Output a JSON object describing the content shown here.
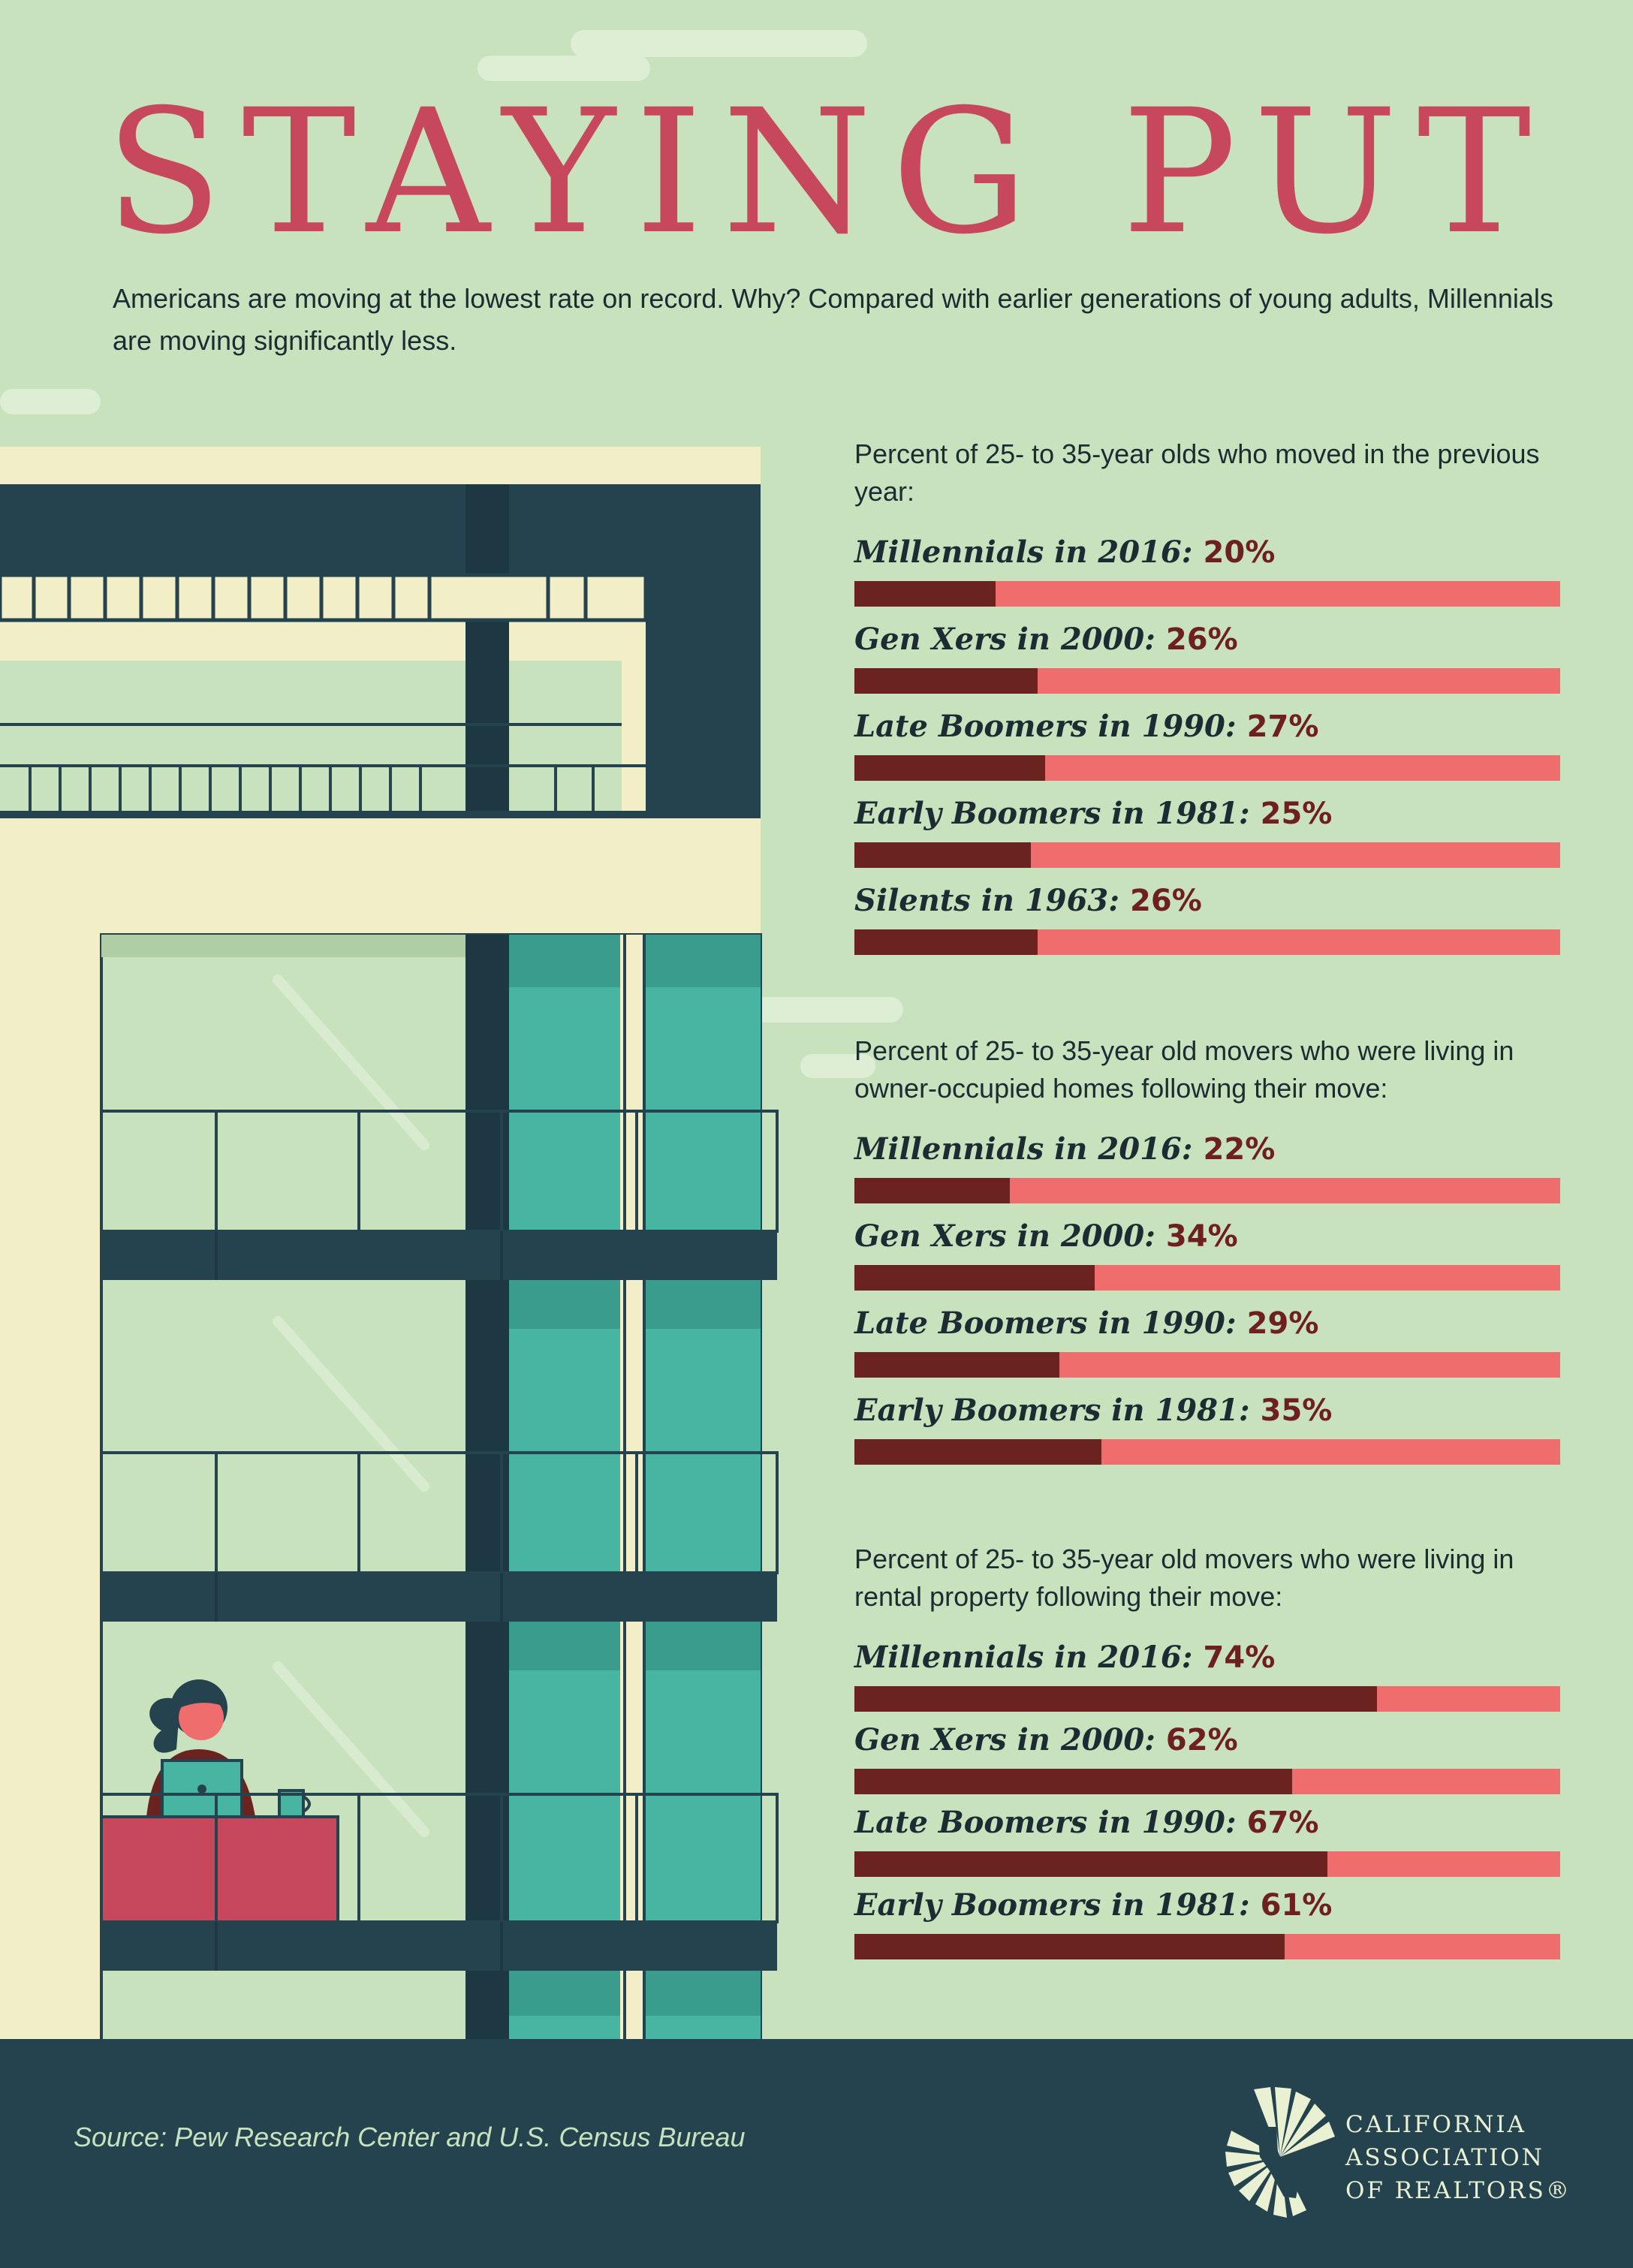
{
  "title": "STAYING PUT",
  "intro": "Americans are moving at the lowest rate on record. Why? Compared with earlier generations of young adults, Millennials are moving significantly less.",
  "colors": {
    "background": "#c7e2bd",
    "title": "#c7485d",
    "bar_fill": "#6b2320",
    "bar_track": "#ef6d6c",
    "value_text": "#6e1f22",
    "footer": "#24434e"
  },
  "chart_data": [
    {
      "type": "bar",
      "title": "Percent of 25- to 35-year olds who moved in the previous year:",
      "categories": [
        "Millennials in 2016:",
        "Gen Xers in 2000:",
        "Late Boomers in 1990:",
        "Early Boomers in 1981:",
        "Silents in 1963:"
      ],
      "values": [
        20,
        26,
        27,
        25,
        26
      ],
      "value_labels": [
        "20%",
        "26%",
        "27%",
        "25%",
        "26%"
      ],
      "ylim": [
        0,
        100
      ]
    },
    {
      "type": "bar",
      "title": "Percent of 25- to 35-year old movers who were living in owner-occupied homes following their move:",
      "categories": [
        "Millennials in 2016:",
        "Gen Xers in 2000:",
        "Late Boomers in 1990:",
        "Early Boomers in 1981:"
      ],
      "values": [
        22,
        34,
        29,
        35
      ],
      "value_labels": [
        "22%",
        "34%",
        "29%",
        "35%"
      ],
      "ylim": [
        0,
        100
      ]
    },
    {
      "type": "bar",
      "title": "Percent of 25- to 35-year old movers who were living in rental property following their move:",
      "categories": [
        "Millennials in 2016:",
        "Gen Xers in 2000:",
        "Late Boomers in 1990:",
        "Early Boomers in 1981:"
      ],
      "values": [
        74,
        62,
        67,
        61
      ],
      "value_labels": [
        "74%",
        "62%",
        "67%",
        "61%"
      ],
      "ylim": [
        0,
        100
      ]
    }
  ],
  "footer": {
    "source": "Source: Pew Research Center and U.S. Census Bureau",
    "logo_lines": [
      "CALIFORNIA",
      "ASSOCIATION",
      "OF REALTORS®"
    ]
  }
}
